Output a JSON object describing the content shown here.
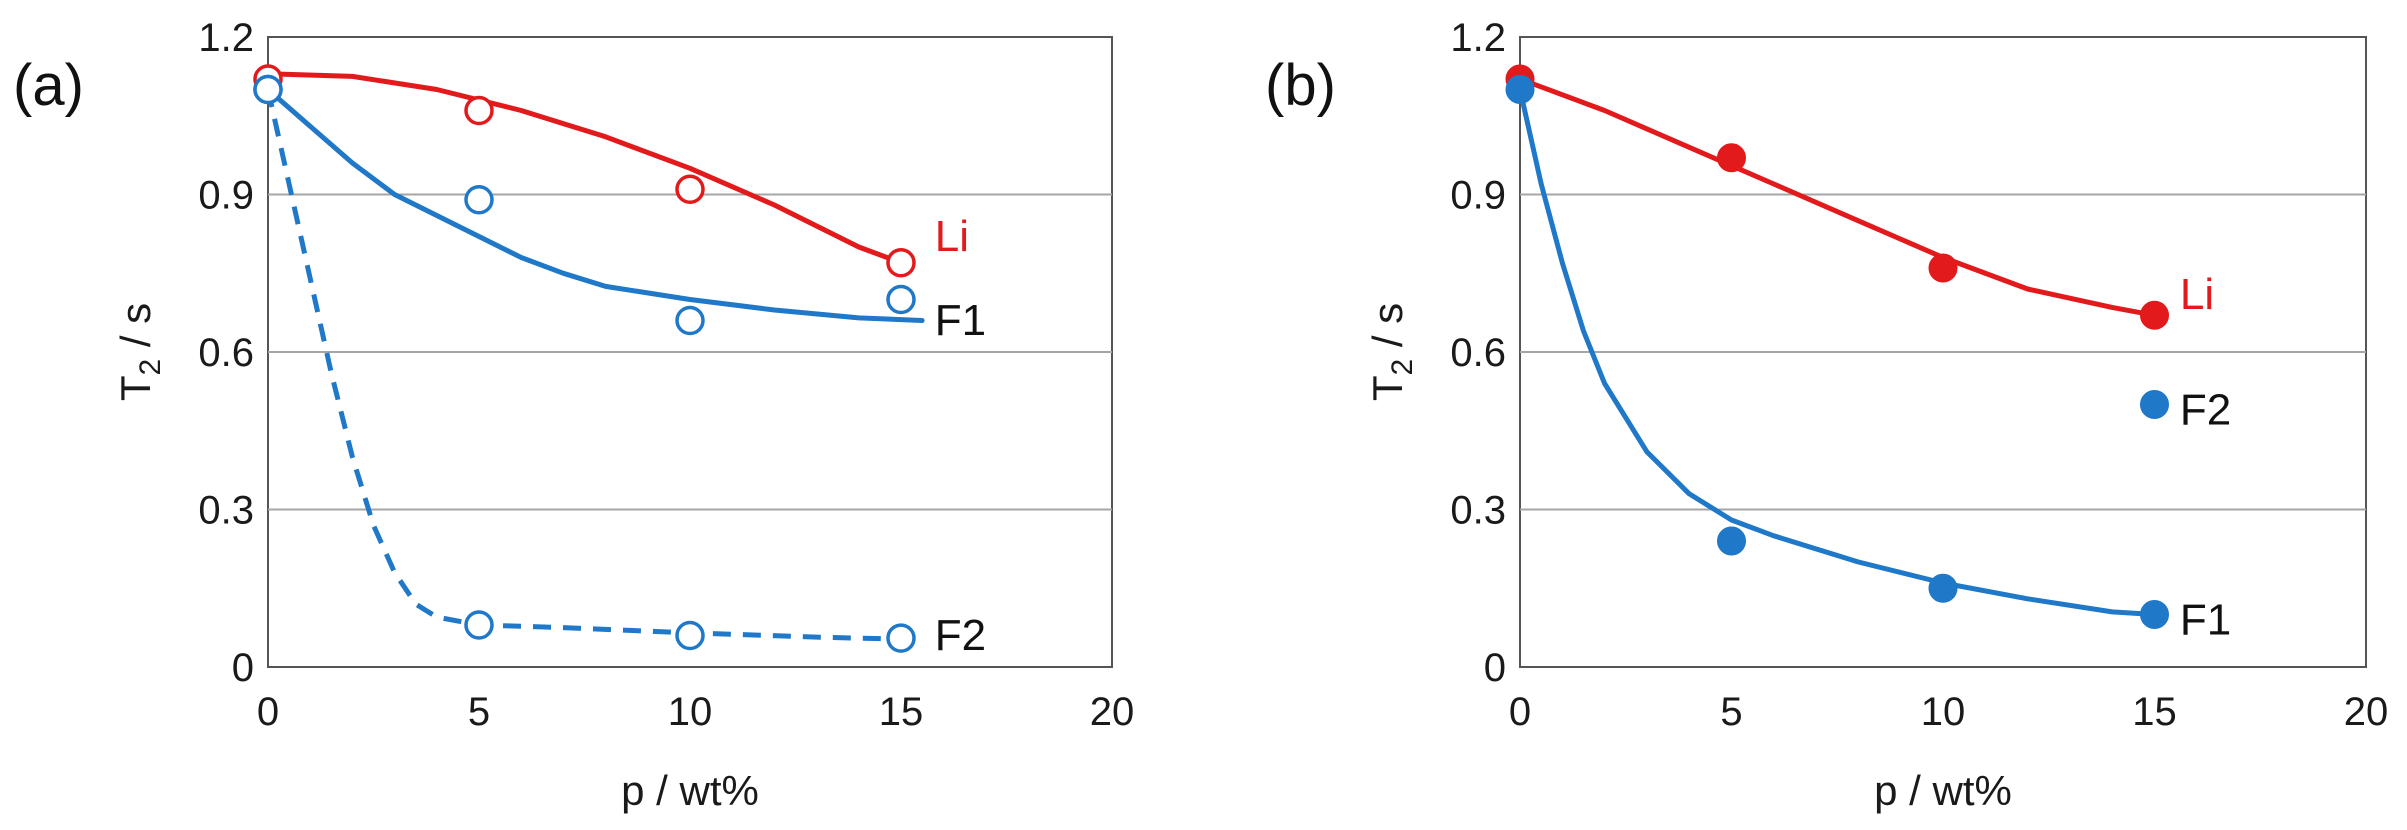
{
  "colors": {
    "Li": "#e31a1c",
    "F1": "#1f78c8",
    "F2": "#1f78c8",
    "grid": "#a6a6a6"
  },
  "chart_data": [
    {
      "type": "scatter",
      "panel_label": "(a)",
      "xlabel": "p / wt%",
      "ylabel_main": "T",
      "ylabel_sub": "2",
      "ylabel_tail": " / s",
      "xlim": [
        0,
        20
      ],
      "ylim": [
        0,
        1.2
      ],
      "xticks": [
        "0",
        "5",
        "10",
        "15",
        "20"
      ],
      "yticks": [
        "0",
        "0.3",
        "0.6",
        "0.9",
        "1.2"
      ],
      "grid": "horizontal",
      "marker": "open-circle",
      "series": [
        {
          "name": "Li",
          "color": "Li",
          "x": [
            0,
            5,
            10,
            15
          ],
          "y": [
            1.12,
            1.06,
            0.91,
            0.77
          ],
          "fit": {
            "x": [
              0,
              2,
              4,
              6,
              8,
              10,
              12,
              14,
              15
            ],
            "y": [
              1.13,
              1.125,
              1.1,
              1.06,
              1.01,
              0.95,
              0.88,
              0.8,
              0.77
            ],
            "dashed": false
          }
        },
        {
          "name": "F1",
          "color": "F1",
          "x": [
            0,
            5,
            10,
            15
          ],
          "y": [
            1.1,
            0.89,
            0.66,
            0.7
          ],
          "fit": {
            "x": [
              0,
              1,
              2,
              3,
              4,
              5,
              6,
              7,
              8,
              10,
              12,
              14,
              15.5
            ],
            "y": [
              1.1,
              1.03,
              0.96,
              0.9,
              0.86,
              0.82,
              0.78,
              0.75,
              0.725,
              0.7,
              0.68,
              0.665,
              0.66
            ],
            "dashed": false
          }
        },
        {
          "name": "F2",
          "color": "F2",
          "x": [
            0,
            5,
            10,
            15
          ],
          "y": [
            1.1,
            0.08,
            0.06,
            0.055
          ],
          "fit": {
            "x": [
              0,
              0.5,
              1,
              1.5,
              2,
              2.5,
              3,
              3.5,
              4,
              5,
              7,
              10,
              13,
              15.5
            ],
            "y": [
              1.1,
              0.92,
              0.74,
              0.56,
              0.4,
              0.27,
              0.18,
              0.12,
              0.095,
              0.08,
              0.075,
              0.065,
              0.057,
              0.052
            ],
            "dashed": true
          }
        }
      ],
      "labels": [
        {
          "text": "Li",
          "color": "Li",
          "x": 15.8,
          "y": 0.8
        },
        {
          "text": "F1",
          "color": "text",
          "x": 15.8,
          "y": 0.64
        },
        {
          "text": "F2",
          "color": "text",
          "x": 15.8,
          "y": 0.04
        }
      ]
    },
    {
      "type": "scatter",
      "panel_label": "(b)",
      "xlabel": "p / wt%",
      "ylabel_main": "T",
      "ylabel_sub": "2",
      "ylabel_tail": " / s",
      "xlim": [
        0,
        20
      ],
      "ylim": [
        0,
        1.2
      ],
      "xticks": [
        "0",
        "5",
        "10",
        "15",
        "20"
      ],
      "yticks": [
        "0",
        "0.3",
        "0.6",
        "0.9",
        "1.2"
      ],
      "grid": "horizontal",
      "marker": "filled-circle",
      "series": [
        {
          "name": "Li",
          "color": "Li",
          "x": [
            0,
            5,
            10,
            15
          ],
          "y": [
            1.12,
            0.97,
            0.76,
            0.67
          ],
          "fit": {
            "x": [
              0,
              2,
              4,
              6,
              8,
              10,
              12,
              14,
              15
            ],
            "y": [
              1.12,
              1.06,
              0.99,
              0.92,
              0.85,
              0.78,
              0.72,
              0.685,
              0.67
            ],
            "dashed": false
          }
        },
        {
          "name": "F2",
          "color": "F2",
          "x": [
            15
          ],
          "y": [
            0.5
          ],
          "fit": null
        },
        {
          "name": "F1",
          "color": "F1",
          "x": [
            0,
            5,
            10,
            15
          ],
          "y": [
            1.1,
            0.24,
            0.15,
            0.1
          ],
          "fit": {
            "x": [
              0,
              0.5,
              1,
              1.5,
              2,
              3,
              4,
              5,
              6,
              8,
              10,
              12,
              14,
              15
            ],
            "y": [
              1.1,
              0.92,
              0.77,
              0.64,
              0.54,
              0.41,
              0.33,
              0.28,
              0.25,
              0.2,
              0.16,
              0.13,
              0.105,
              0.1
            ],
            "dashed": false
          }
        }
      ],
      "labels": [
        {
          "text": "Li",
          "color": "Li",
          "x": 15.6,
          "y": 0.69
        },
        {
          "text": "F2",
          "color": "text",
          "x": 15.6,
          "y": 0.47
        },
        {
          "text": "F1",
          "color": "text",
          "x": 15.6,
          "y": 0.07
        }
      ]
    }
  ]
}
